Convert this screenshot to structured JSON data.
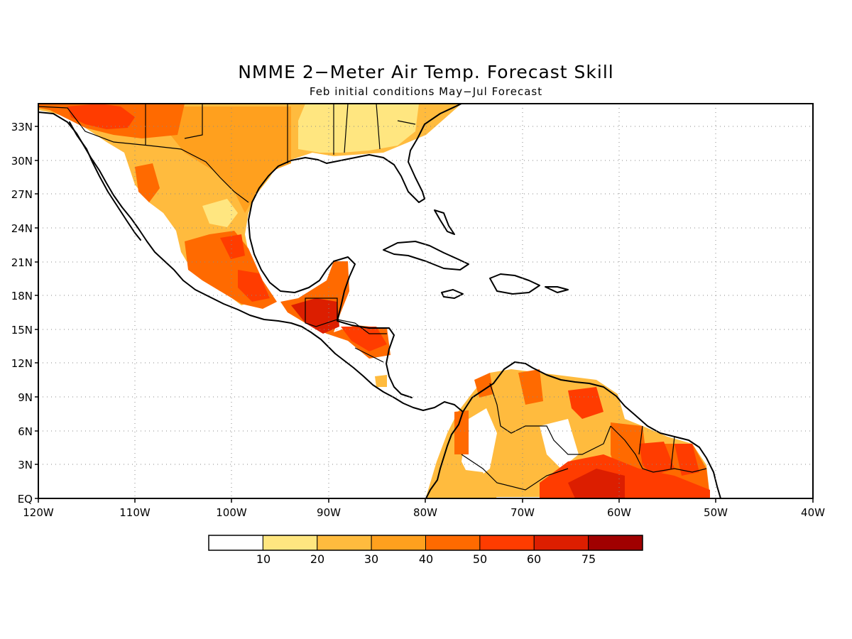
{
  "title": "NMME 2−Meter Air Temp. Forecast Skill",
  "subtitle": "Feb initial conditions   May−Jul Forecast",
  "lat_ticks": [
    "33N",
    "30N",
    "27N",
    "24N",
    "21N",
    "18N",
    "15N",
    "12N",
    "9N",
    "6N",
    "3N",
    "EQ"
  ],
  "lon_ticks": [
    "120W",
    "110W",
    "100W",
    "90W",
    "80W",
    "70W",
    "60W",
    "50W",
    "40W"
  ],
  "colorbar": {
    "colors": [
      "#ffffff",
      "#ffe680",
      "#ffbb3e",
      "#ffa01e",
      "#ff6a00",
      "#ff3c00",
      "#dc1e00",
      "#a00000"
    ],
    "labels": [
      "10",
      "20",
      "30",
      "40",
      "50",
      "60",
      "75"
    ]
  }
}
